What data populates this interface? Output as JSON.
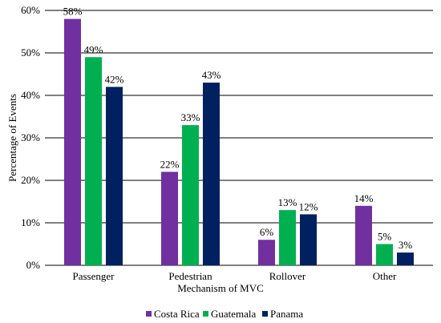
{
  "chart_data": {
    "type": "bar",
    "xlabel": "Mechanism of MVC",
    "ylabel": "Percentage of Events",
    "categories": [
      "Passenger",
      "Pedestrian",
      "Rollover",
      "Other"
    ],
    "series": [
      {
        "name": "Costa Rica",
        "color": "#7030A0",
        "values": [
          58,
          22,
          6,
          14
        ],
        "labels": [
          "58%",
          "22%",
          "6%",
          "14%"
        ]
      },
      {
        "name": "Guatemala",
        "color": "#00B050",
        "values": [
          49,
          33,
          13,
          5
        ],
        "labels": [
          "49%",
          "33%",
          "13%",
          "5%"
        ]
      },
      {
        "name": "Panama",
        "color": "#002060",
        "values": [
          42,
          43,
          12,
          3
        ],
        "labels": [
          "42%",
          "43%",
          "12%",
          "3%"
        ]
      }
    ],
    "ylim": [
      0,
      60
    ],
    "yticks": [
      0,
      10,
      20,
      30,
      40,
      50,
      60
    ],
    "ytick_labels": [
      "0%",
      "10%",
      "20%",
      "30%",
      "40%",
      "50%",
      "60%"
    ],
    "grid": true,
    "legend": "bottom"
  }
}
